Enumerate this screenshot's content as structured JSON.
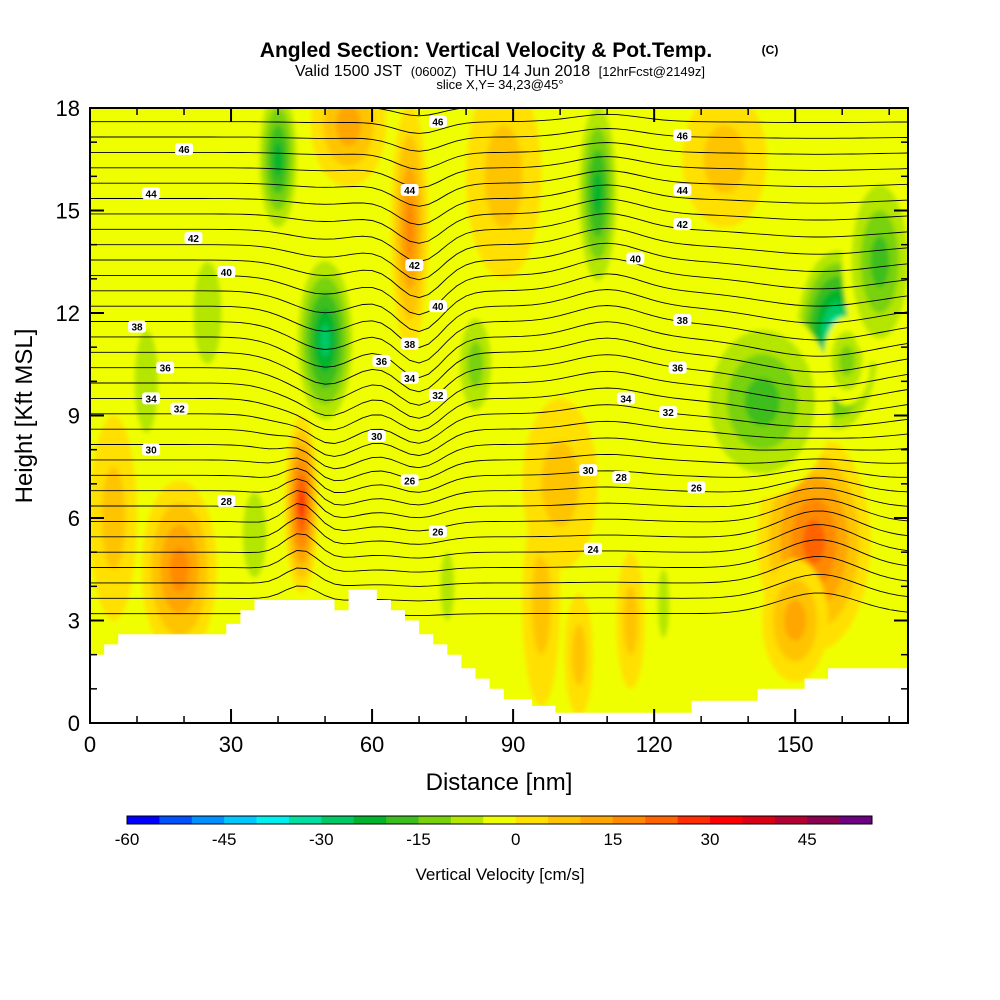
{
  "chart_data": {
    "type": "heatmap",
    "title": "Angled Section: Vertical Velocity & Pot.Temp.",
    "title_mark": "(C)",
    "subtitle": {
      "prefix": "Valid 1500 JST",
      "utc": "(0600Z)",
      "main": "THU 14 Jun 2018",
      "fcst": "[12hrFcst@2149z]"
    },
    "slice_label": "slice X,Y= 34,23@45°",
    "xlabel": "Distance [nm]",
    "ylabel": "Height [Kft MSL]",
    "xlim": [
      0,
      174
    ],
    "ylim": [
      0,
      18
    ],
    "x_ticks": [
      "0",
      "30",
      "60",
      "90",
      "120",
      "150"
    ],
    "x_tick_values": [
      0,
      30,
      60,
      90,
      120,
      150
    ],
    "y_ticks": [
      "0",
      "3",
      "6",
      "9",
      "12",
      "15",
      "18"
    ],
    "y_tick_values": [
      0,
      3,
      6,
      9,
      12,
      15,
      18
    ],
    "colorbar": {
      "label": "Vertical Velocity [cm/s]",
      "tick_labels": [
        "-60",
        "-45",
        "-30",
        "-15",
        "0",
        "15",
        "30",
        "45"
      ],
      "tick_values": [
        -60,
        -45,
        -30,
        -15,
        0,
        15,
        30,
        45
      ],
      "min": -60,
      "max": 55,
      "step": 5,
      "colors": [
        "#0000ff",
        "#0050ff",
        "#0090ff",
        "#00c8ff",
        "#00f0f0",
        "#00e0a0",
        "#00c864",
        "#00b42d",
        "#3cbe1e",
        "#78d20a",
        "#b4e600",
        "#f0ff00",
        "#ffe000",
        "#ffc400",
        "#ffa600",
        "#ff8a00",
        "#ff6400",
        "#ff2d00",
        "#ff0000",
        "#dc0014",
        "#b40032",
        "#8c0050",
        "#6e0082"
      ]
    },
    "theta_contours": {
      "units": "C",
      "labels": [
        {
          "text": "46",
          "x": 20,
          "y": 16.8
        },
        {
          "text": "44",
          "x": 13,
          "y": 15.5
        },
        {
          "text": "42",
          "x": 22,
          "y": 14.2
        },
        {
          "text": "40",
          "x": 29,
          "y": 13.2
        },
        {
          "text": "38",
          "x": 10,
          "y": 11.6
        },
        {
          "text": "36",
          "x": 16,
          "y": 10.4
        },
        {
          "text": "34",
          "x": 13,
          "y": 9.5
        },
        {
          "text": "32",
          "x": 19,
          "y": 9.2
        },
        {
          "text": "30",
          "x": 13,
          "y": 8.0
        },
        {
          "text": "28",
          "x": 29,
          "y": 6.5
        },
        {
          "text": "26",
          "x": 68,
          "y": 7.1
        },
        {
          "text": "26",
          "x": 74,
          "y": 5.6
        },
        {
          "text": "24",
          "x": 107,
          "y": 5.1
        },
        {
          "text": "30",
          "x": 61,
          "y": 8.4
        },
        {
          "text": "32",
          "x": 74,
          "y": 9.6
        },
        {
          "text": "34",
          "x": 68,
          "y": 10.1
        },
        {
          "text": "36",
          "x": 62,
          "y": 10.6
        },
        {
          "text": "38",
          "x": 68,
          "y": 11.1
        },
        {
          "text": "40",
          "x": 74,
          "y": 12.2
        },
        {
          "text": "42",
          "x": 69,
          "y": 13.4
        },
        {
          "text": "44",
          "x": 68,
          "y": 15.6
        },
        {
          "text": "46",
          "x": 74,
          "y": 17.6
        },
        {
          "text": "46",
          "x": 126,
          "y": 17.2
        },
        {
          "text": "44",
          "x": 126,
          "y": 15.6
        },
        {
          "text": "42",
          "x": 126,
          "y": 14.6
        },
        {
          "text": "40",
          "x": 116,
          "y": 13.6
        },
        {
          "text": "38",
          "x": 126,
          "y": 11.8
        },
        {
          "text": "36",
          "x": 125,
          "y": 10.4
        },
        {
          "text": "34",
          "x": 114,
          "y": 9.5
        },
        {
          "text": "32",
          "x": 123,
          "y": 9.1
        },
        {
          "text": "30",
          "x": 106,
          "y": 7.4
        },
        {
          "text": "28",
          "x": 113,
          "y": 7.2
        },
        {
          "text": "26",
          "x": 129,
          "y": 6.9
        }
      ]
    },
    "terrain_profile_kft": [
      [
        0,
        2.0
      ],
      [
        3,
        2.0
      ],
      [
        3,
        2.3
      ],
      [
        6,
        2.3
      ],
      [
        6,
        2.6
      ],
      [
        29,
        2.6
      ],
      [
        29,
        2.9
      ],
      [
        32,
        2.9
      ],
      [
        32,
        3.3
      ],
      [
        35,
        3.3
      ],
      [
        35,
        3.6
      ],
      [
        52,
        3.6
      ],
      [
        52,
        3.3
      ],
      [
        55,
        3.3
      ],
      [
        55,
        3.9
      ],
      [
        61,
        3.9
      ],
      [
        61,
        3.6
      ],
      [
        64,
        3.6
      ],
      [
        64,
        3.3
      ],
      [
        67,
        3.3
      ],
      [
        67,
        3.0
      ],
      [
        70,
        3.0
      ],
      [
        70,
        2.6
      ],
      [
        73,
        2.6
      ],
      [
        73,
        2.3
      ],
      [
        76,
        2.3
      ],
      [
        76,
        2.0
      ],
      [
        79,
        2.0
      ],
      [
        79,
        1.6
      ],
      [
        82,
        1.6
      ],
      [
        82,
        1.3
      ],
      [
        85,
        1.3
      ],
      [
        85,
        1.0
      ],
      [
        88,
        1.0
      ],
      [
        88,
        0.7
      ],
      [
        94,
        0.7
      ],
      [
        94,
        0.5
      ],
      [
        99,
        0.5
      ],
      [
        99,
        0.3
      ],
      [
        128,
        0.3
      ],
      [
        128,
        0.65
      ],
      [
        142,
        0.65
      ],
      [
        142,
        1.0
      ],
      [
        152,
        1.0
      ],
      [
        152,
        1.3
      ],
      [
        157,
        1.3
      ],
      [
        157,
        1.6
      ],
      [
        174,
        1.6
      ]
    ],
    "cells": [
      {
        "x": 45,
        "y": 6.6,
        "sx": 1.8,
        "sy": 1.1,
        "v": 62
      },
      {
        "x": 45,
        "y": 6.4,
        "sx": 3.6,
        "sy": 2.6,
        "v": 26
      },
      {
        "x": 159,
        "y": 5.3,
        "sx": 6,
        "sy": 2.2,
        "v": 40
      },
      {
        "x": 154,
        "y": 5.3,
        "sx": 12,
        "sy": 3.2,
        "v": 22
      },
      {
        "x": 150,
        "y": 3.0,
        "sx": 7,
        "sy": 1.8,
        "v": 14
      },
      {
        "x": 19,
        "y": 4.5,
        "sx": 8,
        "sy": 2.6,
        "v": 17
      },
      {
        "x": 40,
        "y": 16.5,
        "sx": 5,
        "sy": 2.5,
        "v": -22
      },
      {
        "x": 50,
        "y": 11.2,
        "sx": 7,
        "sy": 2.8,
        "v": -28
      },
      {
        "x": 35,
        "y": 5.5,
        "sx": 5,
        "sy": 2.5,
        "v": -8
      },
      {
        "x": 108,
        "y": 15.5,
        "sx": 5,
        "sy": 3.2,
        "v": -22
      },
      {
        "x": 159,
        "y": 11.2,
        "sx": 10,
        "sy": 3.0,
        "v": -36
      },
      {
        "x": 161,
        "y": 10.6,
        "sx": 5,
        "sy": 1.3,
        "v": -14
      },
      {
        "x": 143,
        "y": 9.4,
        "sx": 15,
        "sy": 2.8,
        "v": -18
      },
      {
        "x": 168,
        "y": 13.5,
        "sx": 8,
        "sy": 3.0,
        "v": -16
      },
      {
        "x": 68,
        "y": 14.5,
        "sx": 4,
        "sy": 3.6,
        "v": 16
      },
      {
        "x": 55,
        "y": 17.5,
        "sx": 8,
        "sy": 1.8,
        "v": 12
      },
      {
        "x": 82,
        "y": 10.5,
        "sx": 5,
        "sy": 2.0,
        "v": -12
      },
      {
        "x": 12,
        "y": 10,
        "sx": 5,
        "sy": 3,
        "v": -8
      },
      {
        "x": 96,
        "y": 3.5,
        "sx": 4,
        "sy": 3,
        "v": 8
      },
      {
        "x": 115,
        "y": 3,
        "sx": 3,
        "sy": 2,
        "v": 9
      },
      {
        "x": 122,
        "y": 3.5,
        "sx": 2.5,
        "sy": 2,
        "v": -9
      },
      {
        "x": 76,
        "y": 4,
        "sx": 3,
        "sy": 2,
        "v": -7
      },
      {
        "x": 104,
        "y": 2,
        "sx": 3,
        "sy": 1.8,
        "v": 10
      },
      {
        "x": 25,
        "y": 12,
        "sx": 6,
        "sy": 3,
        "v": -6
      },
      {
        "x": 88,
        "y": 16,
        "sx": 8,
        "sy": 3,
        "v": 8
      },
      {
        "x": 135,
        "y": 16.5,
        "sx": 9,
        "sy": 2,
        "v": 6
      },
      {
        "x": 5,
        "y": 6,
        "sx": 5,
        "sy": 3,
        "v": 9
      },
      {
        "x": 100,
        "y": 7,
        "sx": 8,
        "sy": 2.5,
        "v": 6
      }
    ]
  }
}
